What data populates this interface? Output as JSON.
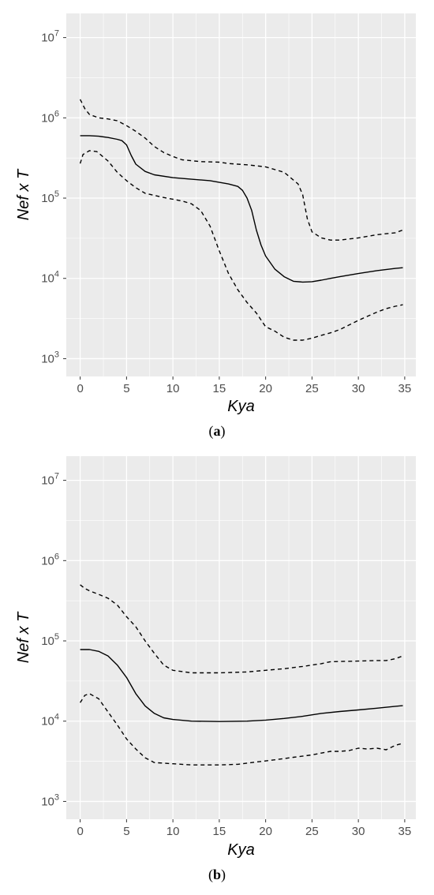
{
  "chart_data": [
    {
      "type": "line",
      "caption_open": "(",
      "caption_letter": "a",
      "caption_close": ")",
      "xlabel": "Kya",
      "ylabel": "Nef x T",
      "ylog": true,
      "xlim": [
        -1.5,
        36.2
      ],
      "ylim": [
        600,
        20000000
      ],
      "xticks": [
        0,
        5,
        10,
        15,
        20,
        25,
        30,
        35
      ],
      "yticks": [
        {
          "value": 1000,
          "base": "10",
          "exp": "3"
        },
        {
          "value": 10000,
          "base": "10",
          "exp": "4"
        },
        {
          "value": 100000,
          "base": "10",
          "exp": "5"
        },
        {
          "value": 1000000,
          "base": "10",
          "exp": "6"
        },
        {
          "value": 10000000,
          "base": "10",
          "exp": "7"
        }
      ],
      "grid": true,
      "series": [
        {
          "style": "dashed",
          "points": [
            [
              0,
              1700000
            ],
            [
              0.5,
              1300000
            ],
            [
              1,
              1100000
            ],
            [
              2,
              1000000
            ],
            [
              3,
              970000
            ],
            [
              4,
              920000
            ],
            [
              5,
              800000
            ],
            [
              6,
              680000
            ],
            [
              7,
              560000
            ],
            [
              8,
              440000
            ],
            [
              9,
              370000
            ],
            [
              10,
              330000
            ],
            [
              11,
              300000
            ],
            [
              13,
              285000
            ],
            [
              15,
              280000
            ],
            [
              16,
              270000
            ],
            [
              18,
              260000
            ],
            [
              20,
              245000
            ],
            [
              22,
              210000
            ],
            [
              23.5,
              150000
            ],
            [
              24,
              110000
            ],
            [
              24.5,
              55000
            ],
            [
              25,
              38000
            ],
            [
              26,
              32000
            ],
            [
              27,
              30000
            ],
            [
              28,
              30000
            ],
            [
              30,
              32000
            ],
            [
              32,
              35000
            ],
            [
              34,
              37000
            ],
            [
              34.8,
              40000
            ]
          ]
        },
        {
          "style": "solid",
          "points": [
            [
              0,
              600000
            ],
            [
              1,
              600000
            ],
            [
              2,
              590000
            ],
            [
              3,
              570000
            ],
            [
              4,
              540000
            ],
            [
              4.5,
              520000
            ],
            [
              5,
              460000
            ],
            [
              5.5,
              340000
            ],
            [
              6,
              265000
            ],
            [
              7,
              215000
            ],
            [
              8,
              195000
            ],
            [
              10,
              180000
            ],
            [
              12,
              172000
            ],
            [
              14,
              165000
            ],
            [
              16,
              150000
            ],
            [
              17,
              140000
            ],
            [
              17.5,
              125000
            ],
            [
              18,
              100000
            ],
            [
              18.5,
              70000
            ],
            [
              19,
              40000
            ],
            [
              19.5,
              26000
            ],
            [
              20,
              19000
            ],
            [
              21,
              13000
            ],
            [
              22,
              10500
            ],
            [
              23,
              9200
            ],
            [
              24,
              9000
            ],
            [
              25,
              9100
            ],
            [
              26,
              9500
            ],
            [
              27,
              10000
            ],
            [
              28,
              10500
            ],
            [
              30,
              11500
            ],
            [
              32,
              12500
            ],
            [
              34,
              13300
            ],
            [
              34.8,
              13600
            ]
          ]
        },
        {
          "style": "dashed",
          "points": [
            [
              0,
              270000
            ],
            [
              0.3,
              350000
            ],
            [
              1,
              390000
            ],
            [
              1.8,
              380000
            ],
            [
              3,
              290000
            ],
            [
              4,
              210000
            ],
            [
              5,
              165000
            ],
            [
              6,
              135000
            ],
            [
              7,
              115000
            ],
            [
              9,
              102000
            ],
            [
              11,
              92000
            ],
            [
              12,
              85000
            ],
            [
              13,
              70000
            ],
            [
              14,
              45000
            ],
            [
              15,
              22000
            ],
            [
              16,
              11500
            ],
            [
              17,
              7200
            ],
            [
              18,
              5000
            ],
            [
              19,
              3700
            ],
            [
              20,
              2500
            ],
            [
              21,
              2200
            ],
            [
              22,
              1850
            ],
            [
              23,
              1700
            ],
            [
              24,
              1700
            ],
            [
              25,
              1800
            ],
            [
              26,
              1950
            ],
            [
              27,
              2100
            ],
            [
              28,
              2300
            ],
            [
              30,
              3000
            ],
            [
              32,
              3800
            ],
            [
              33,
              4200
            ],
            [
              34,
              4500
            ],
            [
              34.8,
              4700
            ]
          ]
        }
      ]
    },
    {
      "type": "line",
      "caption_open": "(",
      "caption_letter": "b",
      "caption_close": ")",
      "xlabel": "Kya",
      "ylabel": "Nef x T",
      "ylog": true,
      "xlim": [
        -1.5,
        36.2
      ],
      "ylim": [
        600,
        20000000
      ],
      "xticks": [
        0,
        5,
        10,
        15,
        20,
        25,
        30,
        35
      ],
      "yticks": [
        {
          "value": 1000,
          "base": "10",
          "exp": "3"
        },
        {
          "value": 10000,
          "base": "10",
          "exp": "4"
        },
        {
          "value": 100000,
          "base": "10",
          "exp": "5"
        },
        {
          "value": 1000000,
          "base": "10",
          "exp": "6"
        },
        {
          "value": 10000000,
          "base": "10",
          "exp": "7"
        }
      ],
      "grid": true,
      "series": [
        {
          "style": "dashed",
          "points": [
            [
              0,
              500000
            ],
            [
              0.5,
              450000
            ],
            [
              1,
              420000
            ],
            [
              2,
              380000
            ],
            [
              3,
              340000
            ],
            [
              4,
              280000
            ],
            [
              5,
              200000
            ],
            [
              6,
              150000
            ],
            [
              7,
              100000
            ],
            [
              8,
              70000
            ],
            [
              9,
              50000
            ],
            [
              10,
              43000
            ],
            [
              12,
              40000
            ],
            [
              15,
              40000
            ],
            [
              18,
              41000
            ],
            [
              20,
              43000
            ],
            [
              22,
              45000
            ],
            [
              24,
              48000
            ],
            [
              26,
              52000
            ],
            [
              27,
              55000
            ],
            [
              30,
              56000
            ],
            [
              32,
              57000
            ],
            [
              33,
              57000
            ],
            [
              34,
              60000
            ],
            [
              34.8,
              65000
            ]
          ]
        },
        {
          "style": "solid",
          "points": [
            [
              0,
              78000
            ],
            [
              1,
              78000
            ],
            [
              2,
              74000
            ],
            [
              3,
              65000
            ],
            [
              4,
              50000
            ],
            [
              5,
              35000
            ],
            [
              6,
              22000
            ],
            [
              7,
              15500
            ],
            [
              8,
              12500
            ],
            [
              9,
              11000
            ],
            [
              10,
              10500
            ],
            [
              12,
              10000
            ],
            [
              15,
              9900
            ],
            [
              18,
              10000
            ],
            [
              20,
              10300
            ],
            [
              22,
              10800
            ],
            [
              24,
              11500
            ],
            [
              26,
              12500
            ],
            [
              28,
              13200
            ],
            [
              30,
              13800
            ],
            [
              32,
              14500
            ],
            [
              34,
              15300
            ],
            [
              34.8,
              15600
            ]
          ]
        },
        {
          "style": "dashed",
          "points": [
            [
              0,
              17000
            ],
            [
              0.5,
              21000
            ],
            [
              1,
              22000
            ],
            [
              2,
              19000
            ],
            [
              3,
              13000
            ],
            [
              4,
              9000
            ],
            [
              5,
              6000
            ],
            [
              6,
              4500
            ],
            [
              7,
              3500
            ],
            [
              8,
              3050
            ],
            [
              10,
              2950
            ],
            [
              12,
              2850
            ],
            [
              15,
              2850
            ],
            [
              17,
              2900
            ],
            [
              19,
              3100
            ],
            [
              21,
              3300
            ],
            [
              23,
              3550
            ],
            [
              25,
              3800
            ],
            [
              26,
              4000
            ],
            [
              27,
              4200
            ],
            [
              28,
              4200
            ],
            [
              29,
              4300
            ],
            [
              30,
              4600
            ],
            [
              31,
              4500
            ],
            [
              32,
              4600
            ],
            [
              33,
              4400
            ],
            [
              34,
              5000
            ],
            [
              34.8,
              5300
            ]
          ]
        }
      ]
    }
  ]
}
